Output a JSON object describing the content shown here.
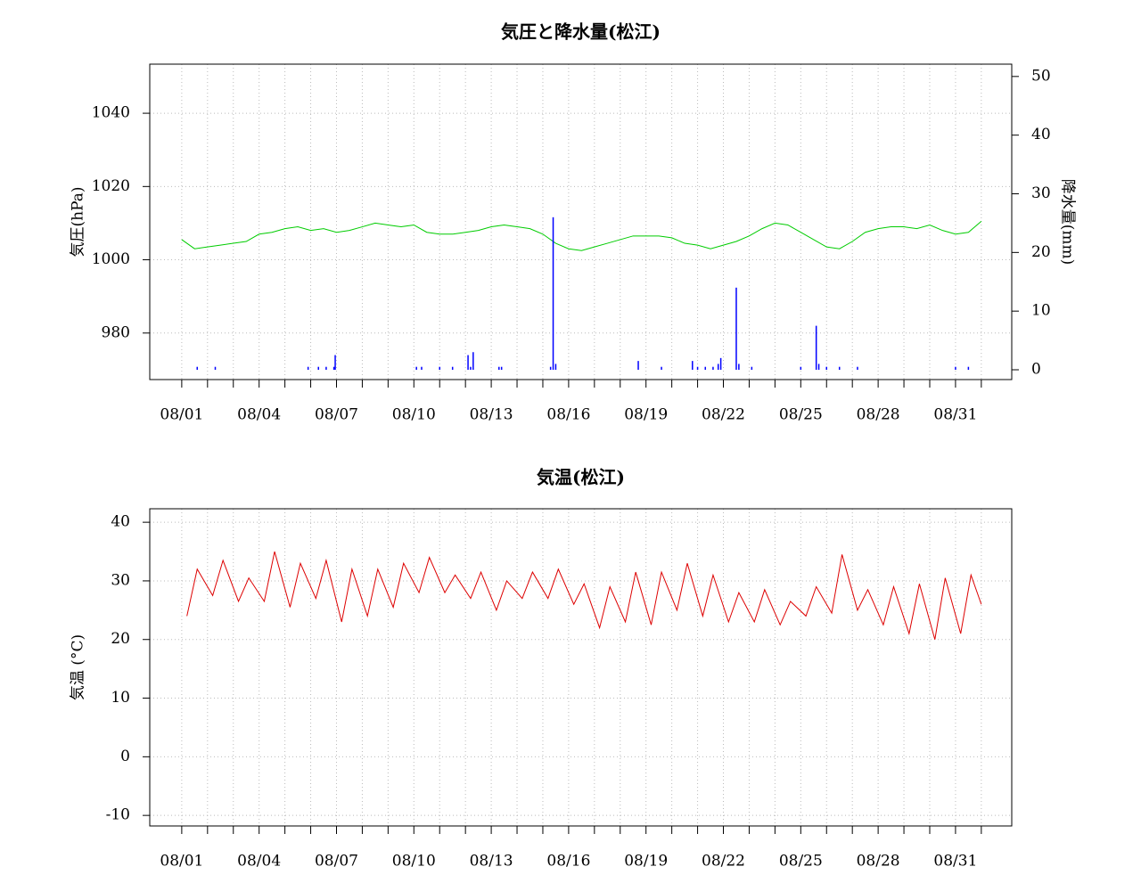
{
  "chart_data": [
    {
      "type": "line",
      "title": "気圧と降水量(松江)",
      "ylabel": "気圧(hPa)",
      "y2label": "降水量(mm)",
      "xlim": [
        -1.24,
        32.18
      ],
      "xticks": [
        {
          "value": 0,
          "label": "08/01"
        },
        {
          "value": 3,
          "label": "08/04"
        },
        {
          "value": 6,
          "label": "08/07"
        },
        {
          "value": 9,
          "label": "08/10"
        },
        {
          "value": 12,
          "label": "08/13"
        },
        {
          "value": 15,
          "label": "08/16"
        },
        {
          "value": 18,
          "label": "08/19"
        },
        {
          "value": 21,
          "label": "08/22"
        },
        {
          "value": 24,
          "label": "08/25"
        },
        {
          "value": 27,
          "label": "08/28"
        },
        {
          "value": 30,
          "label": "08/31"
        }
      ],
      "xminorticks": [
        1,
        2,
        4,
        5,
        7,
        8,
        10,
        11,
        13,
        14,
        16,
        17,
        19,
        20,
        22,
        23,
        25,
        26,
        28,
        29,
        31
      ],
      "ylim": [
        967.3,
        1053.4
      ],
      "yticks": [
        980,
        1000,
        1020,
        1040
      ],
      "y2lim": [
        -1.67,
        52.1
      ],
      "y2ticks": [
        0,
        10,
        20,
        30,
        40,
        50
      ],
      "grid": true,
      "series": [
        {
          "type": "line",
          "axis": "y",
          "color": "#00cc00",
          "x": [
            0,
            0.5,
            1,
            1.5,
            2,
            2.5,
            3,
            3.5,
            4,
            4.5,
            5,
            5.5,
            6,
            6.5,
            7,
            7.5,
            8,
            8.5,
            9,
            9.5,
            10,
            10.5,
            11,
            11.5,
            12,
            12.5,
            13,
            13.5,
            14,
            14.5,
            15,
            15.5,
            16,
            16.5,
            17,
            17.5,
            18,
            18.5,
            19,
            19.5,
            20,
            20.5,
            21,
            21.5,
            22,
            22.5,
            23,
            23.5,
            24,
            24.5,
            25,
            25.5,
            26,
            26.5,
            27,
            27.5,
            28,
            28.5,
            29,
            29.5,
            30,
            30.5,
            31
          ],
          "values": [
            1005.5,
            1003,
            1003.5,
            1004,
            1004.5,
            1005,
            1007,
            1007.5,
            1008.5,
            1009,
            1008,
            1008.5,
            1007.5,
            1008,
            1009,
            1010,
            1009.5,
            1009,
            1009.5,
            1007.5,
            1007,
            1007,
            1007.5,
            1008,
            1009,
            1009.5,
            1009,
            1008.5,
            1007,
            1004.5,
            1003,
            1002.5,
            1003.5,
            1004.5,
            1005.5,
            1006.5,
            1006.5,
            1006.5,
            1006,
            1004.5,
            1004,
            1003,
            1004,
            1005,
            1006.5,
            1008.5,
            1010,
            1009.5,
            1007.5,
            1005.5,
            1003.5,
            1003,
            1005,
            1007.5,
            1008.5,
            1009,
            1009,
            1008.5,
            1009.5,
            1008,
            1007,
            1007.5,
            1010.5
          ]
        },
        {
          "type": "bar",
          "axis": "y2",
          "color": "#0000ff",
          "x": [
            0.6,
            1.3,
            4.9,
            5.3,
            5.6,
            5.9,
            5.95,
            9.1,
            9.3,
            10.0,
            10.5,
            11.1,
            11.2,
            11.3,
            12.3,
            12.4,
            14.3,
            14.4,
            14.5,
            17.7,
            18.6,
            19.8,
            20.0,
            20.3,
            20.6,
            20.8,
            20.9,
            21.5,
            21.6,
            22.1,
            24.0,
            24.6,
            24.7,
            25.0,
            25.5,
            26.2,
            30.0,
            30.5
          ],
          "values": [
            0.5,
            0.5,
            0.5,
            0.5,
            0.5,
            0.5,
            2.5,
            0.5,
            0.5,
            0.5,
            0.5,
            2.5,
            0.5,
            3,
            0.5,
            0.5,
            0.5,
            26,
            1,
            1.5,
            0.5,
            1.5,
            0.5,
            0.5,
            0.5,
            1,
            2,
            14,
            1,
            0.5,
            0.5,
            7.5,
            1,
            0.5,
            0.5,
            0.5,
            0.5,
            0.5
          ]
        }
      ]
    },
    {
      "type": "line",
      "title": "気温(松江)",
      "ylabel": "気温 (°C)",
      "xlim": [
        -1.24,
        32.18
      ],
      "xticks": [
        {
          "value": 0,
          "label": "08/01"
        },
        {
          "value": 3,
          "label": "08/04"
        },
        {
          "value": 6,
          "label": "08/07"
        },
        {
          "value": 9,
          "label": "08/10"
        },
        {
          "value": 12,
          "label": "08/13"
        },
        {
          "value": 15,
          "label": "08/16"
        },
        {
          "value": 18,
          "label": "08/19"
        },
        {
          "value": 21,
          "label": "08/22"
        },
        {
          "value": 24,
          "label": "08/25"
        },
        {
          "value": 27,
          "label": "08/28"
        },
        {
          "value": 30,
          "label": "08/31"
        }
      ],
      "xminorticks": [
        1,
        2,
        4,
        5,
        7,
        8,
        10,
        11,
        13,
        14,
        16,
        17,
        19,
        20,
        22,
        23,
        25,
        26,
        28,
        29,
        31
      ],
      "ylim": [
        -11.8,
        42.3
      ],
      "yticks": [
        -10,
        0,
        10,
        20,
        30,
        40
      ],
      "grid": true,
      "series": [
        {
          "type": "line",
          "axis": "y",
          "color": "#dd0000",
          "x": [
            0.2,
            0.6,
            1.2,
            1.6,
            2.2,
            2.6,
            3.2,
            3.6,
            4.2,
            4.6,
            5.2,
            5.6,
            6.2,
            6.6,
            7.2,
            7.6,
            8.2,
            8.6,
            9.2,
            9.6,
            10.2,
            10.6,
            11.2,
            11.6,
            12.2,
            12.6,
            13.2,
            13.6,
            14.2,
            14.6,
            15.2,
            15.6,
            16.2,
            16.6,
            17.2,
            17.6,
            18.2,
            18.6,
            19.2,
            19.6,
            20.2,
            20.6,
            21.2,
            21.6,
            22.2,
            22.6,
            23.2,
            23.6,
            24.2,
            24.6,
            25.2,
            25.6,
            26.2,
            26.6,
            27.2,
            27.6,
            28.2,
            28.6,
            29.2,
            29.6,
            30.2,
            30.6,
            31
          ],
          "values": [
            24,
            32,
            27.5,
            33.5,
            26.5,
            30.5,
            26.5,
            35,
            25.5,
            33,
            27,
            33.5,
            23,
            32,
            24,
            32,
            25.5,
            33,
            28,
            34,
            28,
            31,
            27,
            31.5,
            25,
            30,
            27,
            31.5,
            27,
            32,
            26,
            29.5,
            22,
            29,
            23,
            31.5,
            22.5,
            31.5,
            25,
            33,
            24,
            31,
            23,
            28,
            23,
            28.5,
            22.5,
            26.5,
            24,
            29,
            24.5,
            34.5,
            25,
            28.5,
            22.5,
            29,
            21,
            29.5,
            20,
            30.5,
            21,
            31,
            26
          ]
        }
      ]
    }
  ]
}
